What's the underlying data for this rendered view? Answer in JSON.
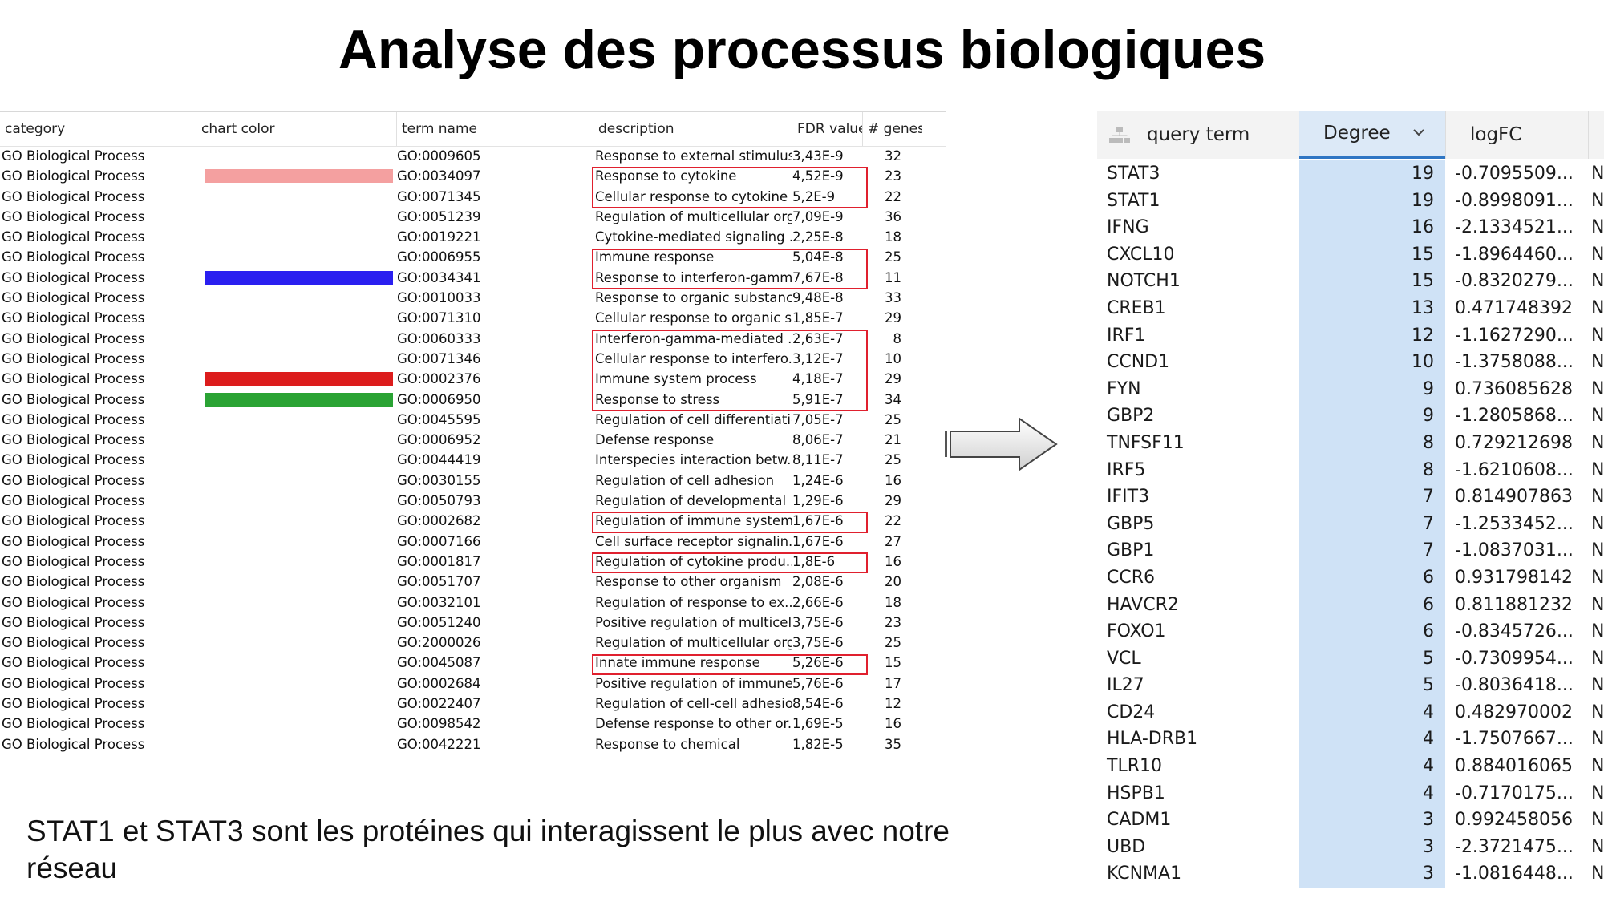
{
  "title": "Analyse des processus biologiques",
  "go_table": {
    "headers": [
      "category",
      "chart color",
      "term name",
      "description",
      "FDR value",
      "# genes"
    ],
    "rows": [
      {
        "category": "GO Biological Process",
        "color": "",
        "term": "GO:0009605",
        "desc": "Response to external stimulus",
        "fdr": "3,43E-9",
        "genes": "32"
      },
      {
        "category": "GO Biological Process",
        "color": "#f4a0a0",
        "term": "GO:0034097",
        "desc": "Response to cytokine",
        "fdr": "4,52E-9",
        "genes": "23"
      },
      {
        "category": "GO Biological Process",
        "color": "",
        "term": "GO:0071345",
        "desc": "Cellular response to cytokine ...",
        "fdr": "5,2E-9",
        "genes": "22"
      },
      {
        "category": "GO Biological Process",
        "color": "",
        "term": "GO:0051239",
        "desc": "Regulation of multicellular org...",
        "fdr": "7,09E-9",
        "genes": "36"
      },
      {
        "category": "GO Biological Process",
        "color": "",
        "term": "GO:0019221",
        "desc": "Cytokine-mediated signaling ...",
        "fdr": "2,25E-8",
        "genes": "18"
      },
      {
        "category": "GO Biological Process",
        "color": "",
        "term": "GO:0006955",
        "desc": "Immune response",
        "fdr": "5,04E-8",
        "genes": "25"
      },
      {
        "category": "GO Biological Process",
        "color": "#2a1ff0",
        "term": "GO:0034341",
        "desc": "Response to interferon-gamma",
        "fdr": "7,67E-8",
        "genes": "11"
      },
      {
        "category": "GO Biological Process",
        "color": "",
        "term": "GO:0010033",
        "desc": "Response to organic substance",
        "fdr": "9,48E-8",
        "genes": "33"
      },
      {
        "category": "GO Biological Process",
        "color": "",
        "term": "GO:0071310",
        "desc": "Cellular response to organic s...",
        "fdr": "1,85E-7",
        "genes": "29"
      },
      {
        "category": "GO Biological Process",
        "color": "",
        "term": "GO:0060333",
        "desc": "Interferon-gamma-mediated ...",
        "fdr": "2,63E-7",
        "genes": "8"
      },
      {
        "category": "GO Biological Process",
        "color": "",
        "term": "GO:0071346",
        "desc": "Cellular response to interfero...",
        "fdr": "3,12E-7",
        "genes": "10"
      },
      {
        "category": "GO Biological Process",
        "color": "#dc1c1c",
        "term": "GO:0002376",
        "desc": "Immune system process",
        "fdr": "4,18E-7",
        "genes": "29"
      },
      {
        "category": "GO Biological Process",
        "color": "#2aa334",
        "term": "GO:0006950",
        "desc": "Response to stress",
        "fdr": "5,91E-7",
        "genes": "34"
      },
      {
        "category": "GO Biological Process",
        "color": "",
        "term": "GO:0045595",
        "desc": "Regulation of cell differentiation",
        "fdr": "7,05E-7",
        "genes": "25"
      },
      {
        "category": "GO Biological Process",
        "color": "",
        "term": "GO:0006952",
        "desc": "Defense response",
        "fdr": "8,06E-7",
        "genes": "21"
      },
      {
        "category": "GO Biological Process",
        "color": "",
        "term": "GO:0044419",
        "desc": "Interspecies interaction betw...",
        "fdr": "8,11E-7",
        "genes": "25"
      },
      {
        "category": "GO Biological Process",
        "color": "",
        "term": "GO:0030155",
        "desc": "Regulation of cell adhesion",
        "fdr": "1,24E-6",
        "genes": "16"
      },
      {
        "category": "GO Biological Process",
        "color": "",
        "term": "GO:0050793",
        "desc": "Regulation of developmental ...",
        "fdr": "1,29E-6",
        "genes": "29"
      },
      {
        "category": "GO Biological Process",
        "color": "",
        "term": "GO:0002682",
        "desc": "Regulation of immune system...",
        "fdr": "1,67E-6",
        "genes": "22"
      },
      {
        "category": "GO Biological Process",
        "color": "",
        "term": "GO:0007166",
        "desc": "Cell surface receptor signalin...",
        "fdr": "1,67E-6",
        "genes": "27"
      },
      {
        "category": "GO Biological Process",
        "color": "",
        "term": "GO:0001817",
        "desc": "Regulation of cytokine produ...",
        "fdr": "1,8E-6",
        "genes": "16"
      },
      {
        "category": "GO Biological Process",
        "color": "",
        "term": "GO:0051707",
        "desc": "Response to other organism",
        "fdr": "2,08E-6",
        "genes": "20"
      },
      {
        "category": "GO Biological Process",
        "color": "",
        "term": "GO:0032101",
        "desc": "Regulation of response to ex...",
        "fdr": "2,66E-6",
        "genes": "18"
      },
      {
        "category": "GO Biological Process",
        "color": "",
        "term": "GO:0051240",
        "desc": "Positive regulation of multicell...",
        "fdr": "3,75E-6",
        "genes": "23"
      },
      {
        "category": "GO Biological Process",
        "color": "",
        "term": "GO:2000026",
        "desc": "Regulation of multicellular org...",
        "fdr": "3,75E-6",
        "genes": "25"
      },
      {
        "category": "GO Biological Process",
        "color": "",
        "term": "GO:0045087",
        "desc": "Innate immune response",
        "fdr": "5,26E-6",
        "genes": "15"
      },
      {
        "category": "GO Biological Process",
        "color": "",
        "term": "GO:0002684",
        "desc": "Positive regulation of immune...",
        "fdr": "5,76E-6",
        "genes": "17"
      },
      {
        "category": "GO Biological Process",
        "color": "",
        "term": "GO:0022407",
        "desc": "Regulation of cell-cell adhesion",
        "fdr": "8,54E-6",
        "genes": "12"
      },
      {
        "category": "GO Biological Process",
        "color": "",
        "term": "GO:0098542",
        "desc": "Defense response to other or...",
        "fdr": "1,69E-5",
        "genes": "16"
      },
      {
        "category": "GO Biological Process",
        "color": "",
        "term": "GO:0042221",
        "desc": "Response to chemical",
        "fdr": "1,82E-5",
        "genes": "35"
      }
    ],
    "highlight_color": "#e0202e"
  },
  "cy_table": {
    "headers": {
      "query": "query term",
      "degree": "Degree",
      "logfc": "logFC"
    },
    "rows": [
      {
        "q": "STAT3",
        "d": "19",
        "l": "-0.7095509...",
        "x": "N"
      },
      {
        "q": "STAT1",
        "d": "19",
        "l": "-0.8998091...",
        "x": "N"
      },
      {
        "q": "IFNG",
        "d": "16",
        "l": "-2.1334521...",
        "x": "N"
      },
      {
        "q": "CXCL10",
        "d": "15",
        "l": "-1.8964460...",
        "x": "N"
      },
      {
        "q": "NOTCH1",
        "d": "15",
        "l": "-0.8320279...",
        "x": "N"
      },
      {
        "q": "CREB1",
        "d": "13",
        "l": "0.471748392",
        "x": "N"
      },
      {
        "q": "IRF1",
        "d": "12",
        "l": "-1.1627290...",
        "x": "N"
      },
      {
        "q": "CCND1",
        "d": "10",
        "l": "-1.3758088...",
        "x": "N"
      },
      {
        "q": "FYN",
        "d": "9",
        "l": "0.736085628",
        "x": "N"
      },
      {
        "q": "GBP2",
        "d": "9",
        "l": "-1.2805868...",
        "x": "N"
      },
      {
        "q": "TNFSF11",
        "d": "8",
        "l": "0.729212698",
        "x": "N"
      },
      {
        "q": "IRF5",
        "d": "8",
        "l": "-1.6210608...",
        "x": "N"
      },
      {
        "q": "IFIT3",
        "d": "7",
        "l": "0.814907863",
        "x": "N"
      },
      {
        "q": "GBP5",
        "d": "7",
        "l": "-1.2533452...",
        "x": "N"
      },
      {
        "q": "GBP1",
        "d": "7",
        "l": "-1.0837031...",
        "x": "N"
      },
      {
        "q": "CCR6",
        "d": "6",
        "l": "0.931798142",
        "x": "N"
      },
      {
        "q": "HAVCR2",
        "d": "6",
        "l": "0.811881232",
        "x": "N"
      },
      {
        "q": "FOXO1",
        "d": "6",
        "l": "-0.8345726...",
        "x": "N"
      },
      {
        "q": "VCL",
        "d": "5",
        "l": "-0.7309954...",
        "x": "N"
      },
      {
        "q": "IL27",
        "d": "5",
        "l": "-0.8036418...",
        "x": "N"
      },
      {
        "q": "CD24",
        "d": "4",
        "l": "0.482970002",
        "x": "N"
      },
      {
        "q": "HLA-DRB1",
        "d": "4",
        "l": "-1.7507667...",
        "x": "N"
      },
      {
        "q": "TLR10",
        "d": "4",
        "l": "0.884016065",
        "x": "N"
      },
      {
        "q": "HSPB1",
        "d": "4",
        "l": "-0.7170175...",
        "x": "N"
      },
      {
        "q": "CADM1",
        "d": "3",
        "l": "0.992458056",
        "x": "N"
      },
      {
        "q": "UBD",
        "d": "3",
        "l": "-2.3721475...",
        "x": "N"
      },
      {
        "q": "KCNMA1",
        "d": "3",
        "l": "-1.0816448...",
        "x": "N"
      }
    ],
    "accent": "#2f76c4"
  },
  "caption": "STAT1 et STAT3 sont les protéines qui interagissent le plus avec notre réseau"
}
